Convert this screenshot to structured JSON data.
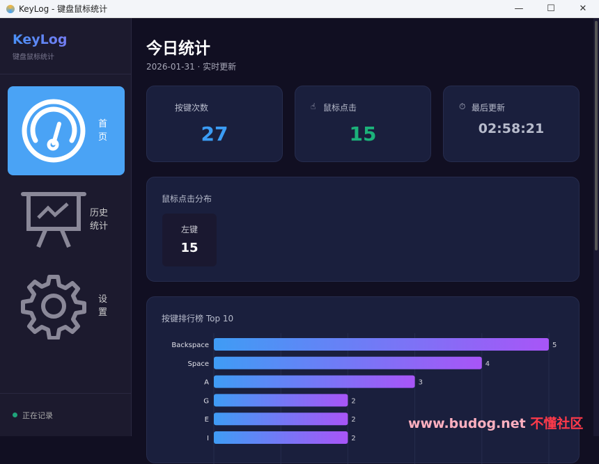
{
  "window": {
    "title": "KeyLog - 键盘鼠标统计",
    "minimize": "—",
    "maximize": "☐",
    "close": "✕"
  },
  "sidebar": {
    "logo": "KeyLog",
    "subtitle": "键盘鼠标统计",
    "items": [
      {
        "label": "首页",
        "icon": "gauge-icon",
        "active": true
      },
      {
        "label": "历史统计",
        "icon": "presentation-chart-icon"
      },
      {
        "label": "设置",
        "icon": "gear-icon"
      }
    ],
    "status": "正在记录",
    "status_color": "#1fa37a"
  },
  "main": {
    "title": "今日统计",
    "date": "2026-01-31 · 实时更新",
    "cards": [
      {
        "label": "按键次数",
        "value": "27",
        "color": "#3b9cf5"
      },
      {
        "label": "鼠标点击",
        "icon": "pointer-hand-icon",
        "value": "15",
        "color": "#1cb27a"
      },
      {
        "label": "最后更新",
        "icon": "stopwatch-icon",
        "value": "02:58:21",
        "color": "#b8bccc"
      }
    ],
    "mouse": {
      "title": "鼠标点击分布",
      "items": [
        {
          "label": "左键",
          "value": "15"
        }
      ]
    }
  },
  "chart_data": {
    "type": "bar",
    "orientation": "horizontal",
    "title": "按键排行榜 Top 10",
    "categories": [
      "Backspace",
      "Space",
      "A",
      "G",
      "E",
      "I"
    ],
    "values": [
      5,
      4,
      3,
      2,
      2,
      2
    ],
    "xlim": [
      0,
      5
    ],
    "grid": true,
    "gradient": [
      "#3f9cf5",
      "#a855f7"
    ]
  },
  "watermark": {
    "text": "www.budog.net",
    "text2": "不懂社区"
  }
}
